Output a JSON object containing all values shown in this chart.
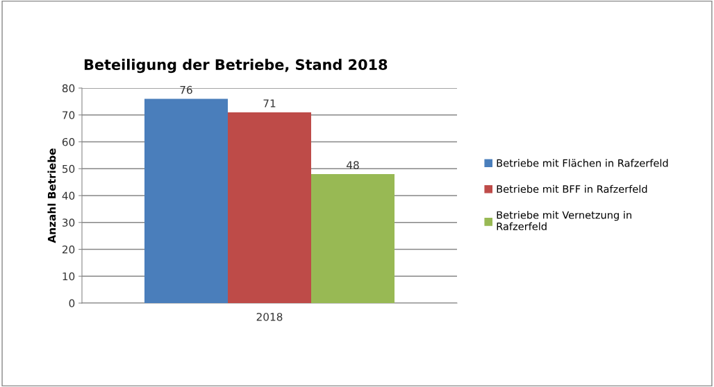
{
  "chart_data": {
    "type": "bar",
    "title": "Beteiligung der Betriebe, Stand 2018",
    "ylabel": "Anzahl Betriebe",
    "categories": [
      "2018"
    ],
    "series": [
      {
        "name": "Betriebe mit Flächen in Rafzerfeld",
        "color": "#4a7ebb",
        "values": [
          76
        ]
      },
      {
        "name": "Betriebe mit BFF in Rafzerfeld",
        "color": "#be4b48",
        "values": [
          71
        ]
      },
      {
        "name": "Betriebe mit Vernetzung in\nRafzerfeld",
        "color": "#98b954",
        "values": [
          48
        ]
      }
    ],
    "ylim": [
      0,
      80
    ],
    "yticks": [
      0,
      10,
      20,
      30,
      40,
      50,
      60,
      70,
      80
    ],
    "grid": "y",
    "legend": "right",
    "data_labels": true
  }
}
